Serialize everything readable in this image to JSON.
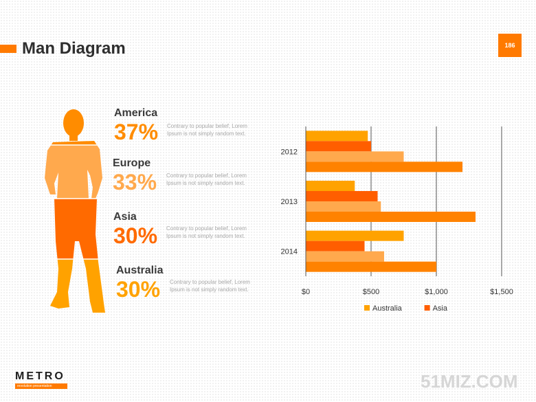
{
  "slide": {
    "title": "Man Diagram",
    "page_number": "186",
    "accent_color": "#ff7a00"
  },
  "regions": [
    {
      "name": "America",
      "percent": "37%",
      "color": "#ff8c00",
      "description": "Contrary to popular belief, Lorem Ipsum is not simply random text."
    },
    {
      "name": "Europe",
      "percent": "33%",
      "color": "#ffa94d",
      "description": "Contrary to popular belief, Lorem Ipsum is not simply random text."
    },
    {
      "name": "Asia",
      "percent": "30%",
      "color": "#ff6a00",
      "description": "Contrary to popular belief, Lorem Ipsum is not simply random text."
    },
    {
      "name": "Australia",
      "percent": "30%",
      "color": "#ffa200",
      "description": "Contrary to popular belief, Lorem Ipsum is not simply random text."
    }
  ],
  "man_figure": {
    "icon": "man-silhouette-icon",
    "segment_colors": [
      "#ff8c00",
      "#ffa94d",
      "#ff6a00",
      "#ffa200"
    ]
  },
  "chart_data": {
    "type": "bar",
    "orientation": "horizontal",
    "categories": [
      "2012",
      "2013",
      "2014"
    ],
    "series": [
      {
        "name": "Australia",
        "color": "#ffa200",
        "values": [
          475,
          375,
          750
        ],
        "show_in_legend": true
      },
      {
        "name": "Asia",
        "color": "#ff5e00",
        "values": [
          500,
          550,
          450
        ],
        "show_in_legend": true
      },
      {
        "name": "",
        "color": "#ffa94d",
        "values": [
          750,
          575,
          600
        ],
        "show_in_legend": false
      },
      {
        "name": "",
        "color": "#ff8200",
        "values": [
          1200,
          1300,
          1000
        ],
        "show_in_legend": false
      }
    ],
    "x_ticks": [
      "$0",
      "$500",
      "$1,000",
      "$1,500"
    ],
    "xlim": [
      0,
      1500
    ],
    "x_tick_values": [
      0,
      500,
      1000,
      1500
    ],
    "grid": true,
    "legend_position": "bottom",
    "title": "",
    "xlabel": "",
    "ylabel": ""
  },
  "footer": {
    "logo_word": "METRO",
    "logo_tagline": "revolution presentation",
    "watermark": "51MIZ.COM"
  }
}
